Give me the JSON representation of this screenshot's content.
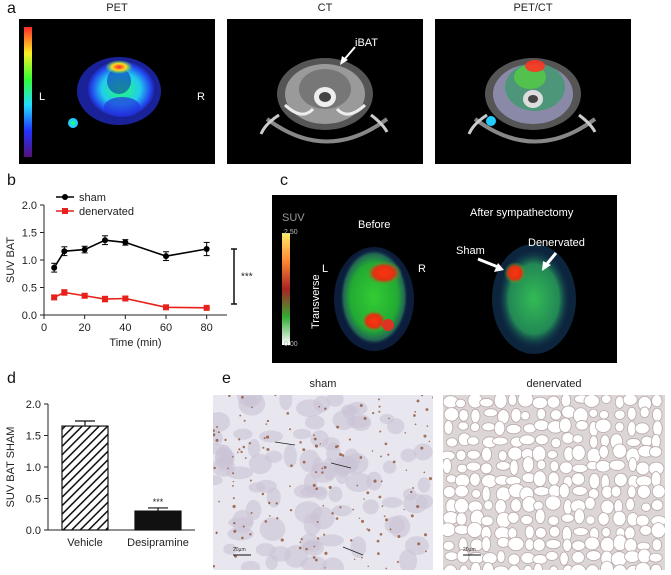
{
  "panels": {
    "a": {
      "letter": "a",
      "titles": [
        "PET",
        "CT",
        "PET/CT"
      ],
      "pet_labels": {
        "left": "L",
        "right": "R"
      },
      "ct_annotation": "iBAT"
    },
    "b": {
      "letter": "b",
      "significance": "***"
    },
    "c": {
      "letter": "c",
      "suv_label": "SUV",
      "scale_max": "2.50",
      "scale_min": "0.00",
      "orientation": "Transverse",
      "before": "Before",
      "after": "After sympathectomy",
      "left": "L",
      "right": "R",
      "sham": "Sham",
      "denervated": "Denervated"
    },
    "d": {
      "letter": "d"
    },
    "e": {
      "letter": "e",
      "titles": [
        "sham",
        "denervated"
      ],
      "scale_bars": [
        "20µm",
        "20µm"
      ]
    }
  },
  "chart_data": [
    {
      "panel": "b",
      "type": "line",
      "xlabel": "Time (min)",
      "ylabel": "SUV BAT",
      "xlim": [
        0,
        90
      ],
      "ylim": [
        0,
        2.0
      ],
      "xticks": [
        0,
        20,
        40,
        60,
        80
      ],
      "yticks": [
        0.0,
        0.5,
        1.0,
        1.5,
        2.0
      ],
      "legend_position": "top-left",
      "series": [
        {
          "name": "sham",
          "color": "#000000",
          "x": [
            5,
            10,
            20,
            30,
            40,
            60,
            80
          ],
          "y": [
            0.86,
            1.16,
            1.19,
            1.36,
            1.32,
            1.07,
            1.2
          ],
          "err": [
            0.08,
            0.08,
            0.06,
            0.08,
            0.05,
            0.08,
            0.12
          ]
        },
        {
          "name": "denervated",
          "color": "#e8211c",
          "x": [
            5,
            10,
            20,
            30,
            40,
            60,
            80
          ],
          "y": [
            0.32,
            0.41,
            0.35,
            0.29,
            0.3,
            0.14,
            0.13
          ],
          "err": [
            0.03,
            0.05,
            0.04,
            0.05,
            0.04,
            0.01,
            0.01
          ]
        }
      ]
    },
    {
      "panel": "d",
      "type": "bar",
      "xlabel": "",
      "ylabel": "SUV BAT SHAM",
      "ylim": [
        0,
        2.0
      ],
      "yticks": [
        0.0,
        0.5,
        1.0,
        1.5,
        2.0
      ],
      "categories": [
        "Vehicle",
        "Desipramine"
      ],
      "values": [
        1.65,
        0.3
      ],
      "errors": [
        0.08,
        0.05
      ],
      "annotations": [
        "",
        "***"
      ]
    }
  ]
}
